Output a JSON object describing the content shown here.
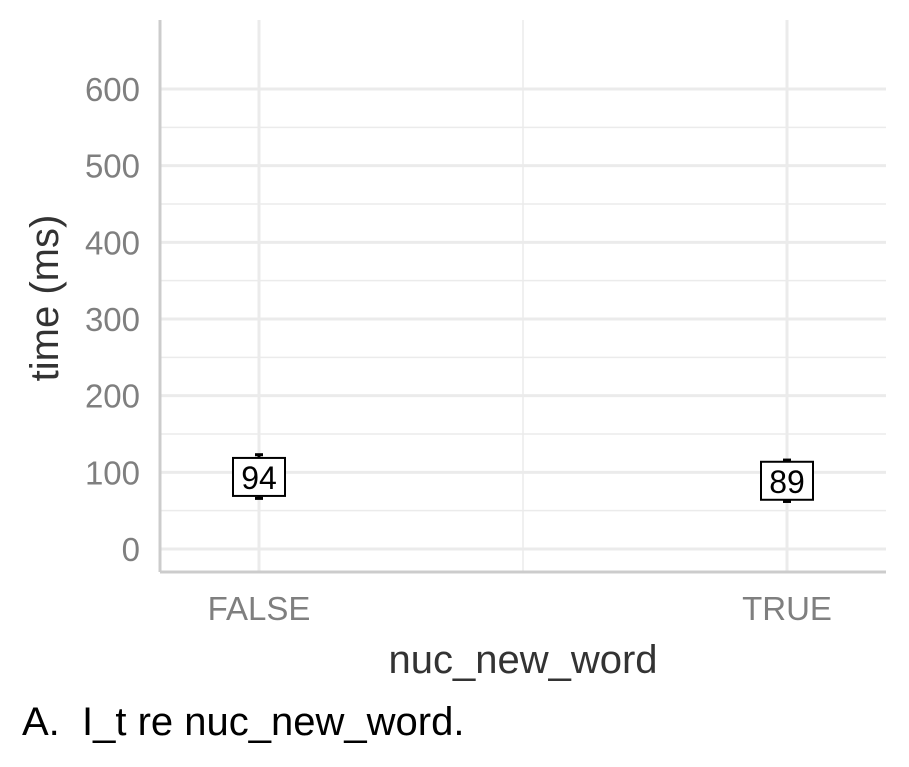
{
  "chart_data": {
    "type": "scatter",
    "categories": [
      "FALSE",
      "TRUE"
    ],
    "values": [
      94,
      89
    ],
    "error_bars": [
      {
        "low": 66,
        "high": 123
      },
      {
        "low": 62,
        "high": 116
      }
    ],
    "data_labels": [
      "94",
      "89"
    ],
    "title": "",
    "xlabel": "nuc_new_word",
    "ylabel": "time (ms)",
    "ylim": [
      -30,
      690
    ],
    "yticks": [
      0,
      100,
      200,
      300,
      400,
      500,
      600
    ],
    "grid": true,
    "legend": "none",
    "colors": {
      "grid": "#ebebeb",
      "axis": "#cccccc",
      "tick_text": "#7f7f7f",
      "title_text": "#333333",
      "marker": "#000000"
    }
  },
  "caption": "A.  I_t re nuc_new_word."
}
